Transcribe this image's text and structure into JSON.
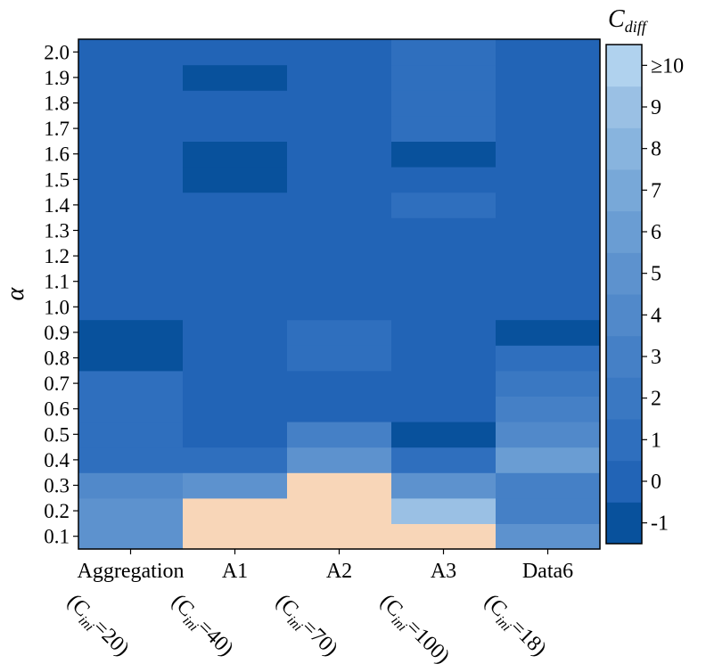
{
  "chart_data": {
    "type": "heatmap",
    "title": "",
    "ylabel": "α",
    "colorbar_label_main": "C",
    "colorbar_label_sub": "diff",
    "colorbar_ticks": [
      "-1",
      "0",
      "1",
      "2",
      "3",
      "4",
      "5",
      "6",
      "7",
      "8",
      "9",
      "≥10"
    ],
    "colorbar_range": [
      -1,
      10
    ],
    "colorbar_colors": [
      "#08519c",
      "#2264b6",
      "#2f6fbe",
      "#3a78c2",
      "#4580c6",
      "#5189ca",
      "#5d92ce",
      "#6a9dd3",
      "#78a8d8",
      "#88b4de",
      "#9ac0e4",
      "#b0d2ee"
    ],
    "over_range_color": "#f8d6b8",
    "x_categories": [
      {
        "label": "Aggregation",
        "sub_prefix": "(C",
        "sub_index": "ini",
        "sub_suffix": "=20)"
      },
      {
        "label": "A1",
        "sub_prefix": "(C",
        "sub_index": "ini",
        "sub_suffix": "=40)"
      },
      {
        "label": "A2",
        "sub_prefix": "(C",
        "sub_index": "ini",
        "sub_suffix": "=70)"
      },
      {
        "label": "A3",
        "sub_prefix": "(C",
        "sub_index": "ini",
        "sub_suffix": "=100)"
      },
      {
        "label": "Data6",
        "sub_prefix": "(C",
        "sub_index": "ini",
        "sub_suffix": "=18)"
      }
    ],
    "y_categories": [
      "0.1",
      "0.2",
      "0.3",
      "0.4",
      "0.5",
      "0.6",
      "0.7",
      "0.8",
      "0.9",
      "1.0",
      "1.1",
      "1.2",
      "1.3",
      "1.4",
      "1.5",
      "1.6",
      "1.7",
      "1.8",
      "1.9",
      "2.0"
    ],
    "values": [
      [
        5,
        5,
        4,
        1,
        1,
        1,
        1,
        -1,
        -1,
        0,
        0,
        0,
        0,
        0,
        0,
        0,
        0,
        0,
        0,
        0
      ],
      [
        11,
        11,
        5,
        1,
        0,
        0,
        0,
        0,
        0,
        0,
        0,
        0,
        0,
        0,
        -1,
        -1,
        0,
        0,
        -1,
        0
      ],
      [
        11,
        11,
        11,
        5,
        3,
        0,
        0,
        1,
        1,
        0,
        0,
        0,
        0,
        0,
        0,
        0,
        0,
        0,
        0,
        0
      ],
      [
        11,
        9,
        5,
        1,
        -1,
        0,
        0,
        0,
        0,
        0,
        0,
        0,
        0,
        1,
        0,
        -1,
        1,
        1,
        1,
        1
      ],
      [
        5,
        3,
        3,
        6,
        4,
        3,
        2,
        1,
        -1,
        0,
        0,
        0,
        0,
        0,
        0,
        0,
        0,
        0,
        0,
        0
      ]
    ]
  }
}
